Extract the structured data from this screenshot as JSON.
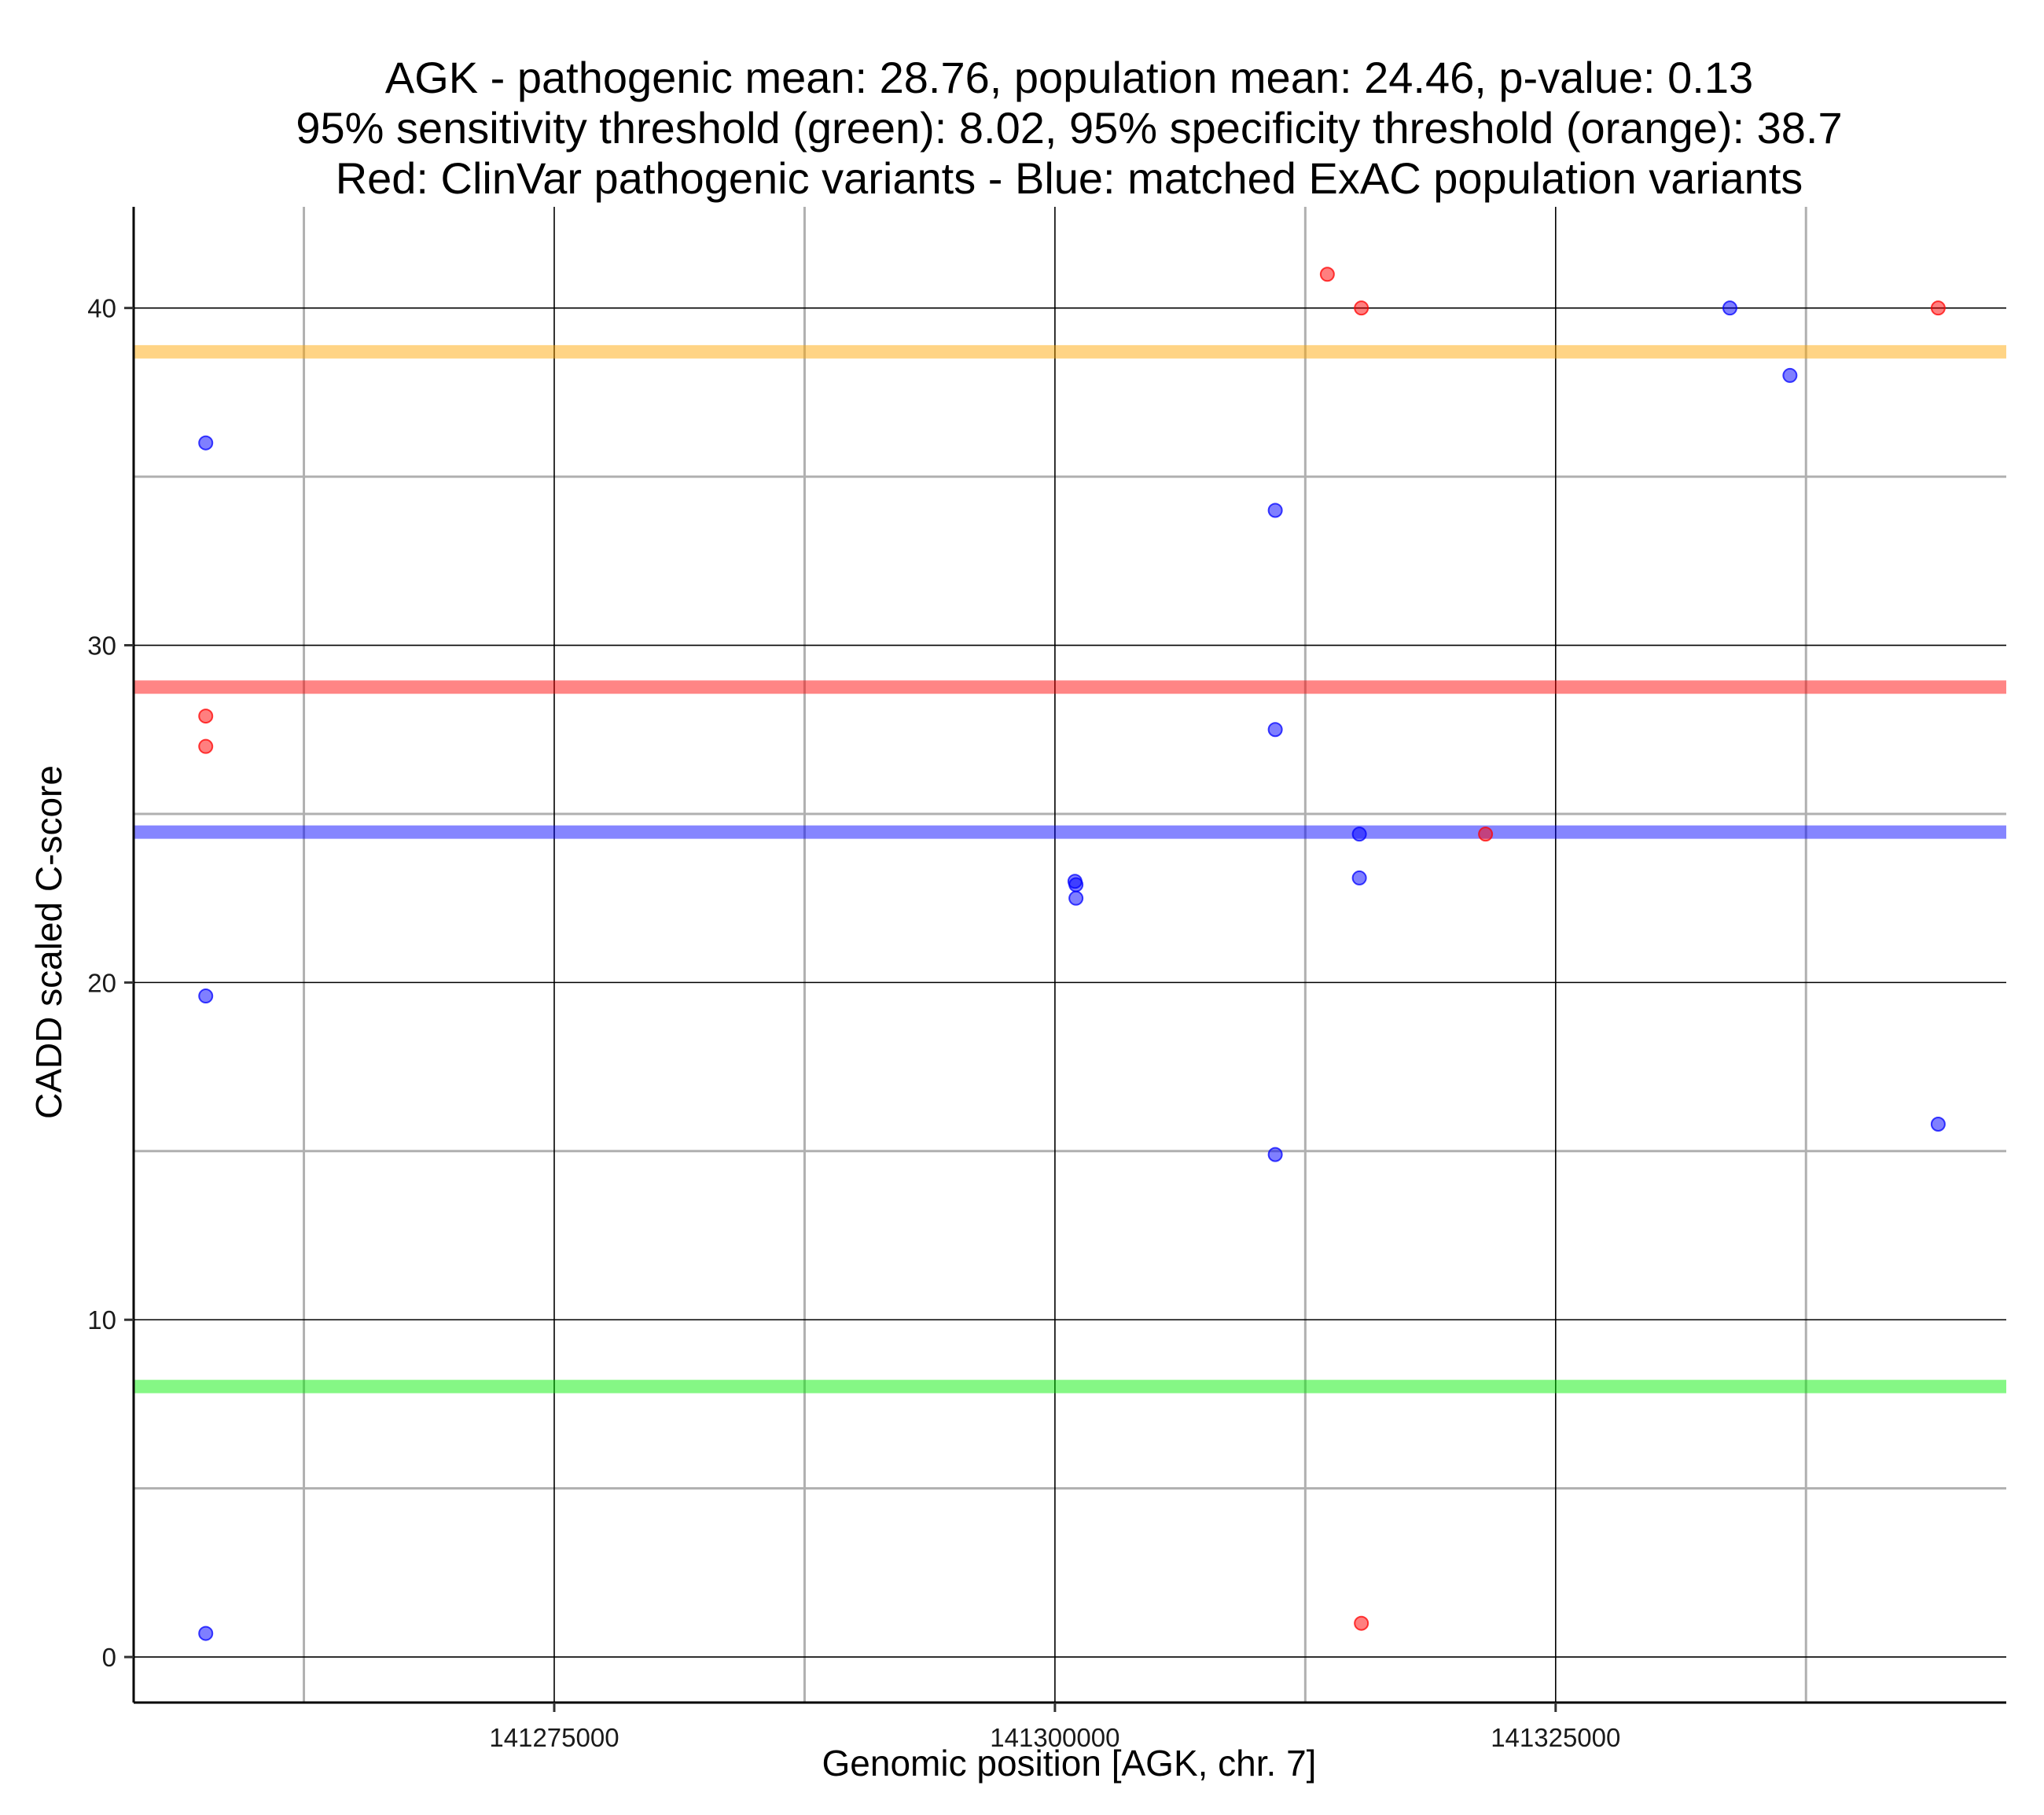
{
  "chart_data": {
    "type": "scatter",
    "title_lines": [
      "AGK - pathogenic mean: 28.76, population mean: 24.46, p-value: 0.13",
      "95% sensitivity threshold (green): 8.02, 95% specificity threshold (orange): 38.7",
      "Red: ClinVar pathogenic variants - Blue: matched ExAC population variants"
    ],
    "xlabel": "Genomic position [AGK, chr. 7]",
    "ylabel": "CADD scaled C-score",
    "xlim": [
      141254000,
      141347500
    ],
    "ylim": [
      -1.35,
      43
    ],
    "x_major_ticks": [
      141275000,
      141300000,
      141325000
    ],
    "x_tick_labels": [
      "141275000",
      "141300000",
      "141325000"
    ],
    "x_minor_grid": [
      141262500,
      141287500,
      141312500,
      141337500
    ],
    "y_major_ticks": [
      0,
      10,
      20,
      30,
      40
    ],
    "y_tick_labels": [
      "0",
      "10",
      "20",
      "30",
      "40"
    ],
    "y_minor_grid": [
      5,
      15,
      25,
      35
    ],
    "grid": true,
    "colors": {
      "pathogenic": "#ff0000",
      "population": "#0000ff",
      "sensitivity_line": "#00ee00",
      "specificity_line": "#ffa500",
      "pathogenic_mean_line": "#ff0000",
      "population_mean_line": "#0000ff"
    },
    "hlines": [
      {
        "name": "specificity-threshold",
        "y": 38.7,
        "color": "#ffa500"
      },
      {
        "name": "pathogenic-mean",
        "y": 28.76,
        "color": "#ff0000"
      },
      {
        "name": "population-mean",
        "y": 24.46,
        "color": "#0000ff"
      },
      {
        "name": "sensitivity-threshold",
        "y": 8.02,
        "color": "#00ee00"
      }
    ],
    "series": [
      {
        "name": "ClinVar pathogenic variants",
        "color": "#ff0000",
        "points": [
          {
            "x": 141257600,
            "y": 27.9
          },
          {
            "x": 141257600,
            "y": 27.0
          },
          {
            "x": 141313600,
            "y": 41.0
          },
          {
            "x": 141315300,
            "y": 40.0
          },
          {
            "x": 141315300,
            "y": 1.0
          },
          {
            "x": 141321500,
            "y": 24.4
          },
          {
            "x": 141344100,
            "y": 40.0
          }
        ]
      },
      {
        "name": "matched ExAC population variants",
        "color": "#0000ff",
        "points": [
          {
            "x": 141257600,
            "y": 36.0
          },
          {
            "x": 141257600,
            "y": 19.6
          },
          {
            "x": 141257600,
            "y": 0.7
          },
          {
            "x": 141301000,
            "y": 23.0
          },
          {
            "x": 141301050,
            "y": 22.9
          },
          {
            "x": 141301050,
            "y": 22.5
          },
          {
            "x": 141311000,
            "y": 34.0
          },
          {
            "x": 141311000,
            "y": 27.5
          },
          {
            "x": 141311000,
            "y": 14.9
          },
          {
            "x": 141315200,
            "y": 24.4
          },
          {
            "x": 141315200,
            "y": 23.1
          },
          {
            "x": 141333700,
            "y": 40.0
          },
          {
            "x": 141336700,
            "y": 38.0
          },
          {
            "x": 141344100,
            "y": 15.8
          }
        ]
      }
    ]
  }
}
